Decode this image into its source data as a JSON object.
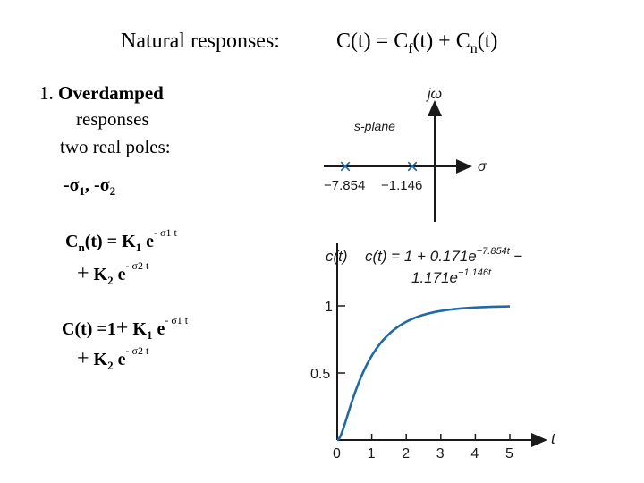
{
  "slide": {
    "title_prefix": "Natural responses:",
    "formula": {
      "c": "C(t) = C",
      "f_sub": "f",
      "mid": "(t) + C",
      "n_sub": "n",
      "end": "(t)"
    },
    "item_number": "1. ",
    "item_heading": "Overdamped",
    "item_line2": "responses",
    "item_line3": "two real poles:",
    "poles": {
      "a": "-σ",
      "a_sub": "1",
      "sep": ", -σ",
      "b_sub": "2"
    },
    "eq1": {
      "lhs": "C",
      "lhs_sub": "n",
      "lhs_end": "(t) = K",
      "k1_sub": "1",
      "e1": " e",
      "exp1": "- σ1  t",
      "plus": "+",
      "k2": " K",
      "k2_sub": "2",
      "e2": " e",
      "exp2": "- σ2  t"
    },
    "eq2": {
      "lhs": "C(t) =1",
      "plus1": "+",
      "k1": " K",
      "k1_sub": "1",
      "e1": " e",
      "exp1": "- σ1  t",
      "plus2": "+",
      "k2": " K",
      "k2_sub": "2",
      "e2": " e",
      "exp2": "- σ2  t"
    }
  },
  "splane": {
    "jw_label": "jω",
    "plane_label": "s-plane",
    "sigma_label": "σ",
    "pole_marker": "×",
    "pole_labels": [
      "−7.854",
      "−1.146"
    ],
    "pole_values": [
      -7.854,
      -1.146
    ]
  },
  "chart_data": {
    "type": "line",
    "ylabel": "c(t)",
    "xlabel": "t",
    "annotation_line1": "c(t) = 1 + 0.171e",
    "annotation_exp1": "−7.854t",
    "annotation_tail1": " −",
    "annotation_line2": "1.171e",
    "annotation_exp2": "−1.146t",
    "xticks": [
      "0",
      "1",
      "2",
      "3",
      "4",
      "5"
    ],
    "yticks": [
      "0.5",
      "1"
    ],
    "xlim": [
      0,
      5.5
    ],
    "ylim": [
      0,
      1.15
    ],
    "curve_color": "#1f6aa5",
    "series": [
      {
        "coeffs": {
          "const": 1,
          "a": 0.171,
          "ra": -7.854,
          "b": -1.171,
          "rb": -1.146
        }
      }
    ]
  }
}
